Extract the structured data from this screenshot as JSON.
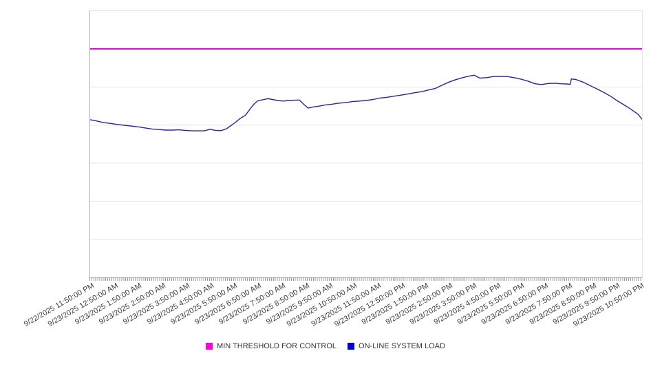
{
  "chart_data": {
    "type": "line",
    "title": "",
    "legend_position": "bottom-center",
    "plot_colors": {
      "background": "#ffffff",
      "gridline": "#e8e8e8",
      "axis": "#b0b0b0",
      "minor_tick": "#999999"
    },
    "x_axis": {
      "tick_labels": [
        "9/22/2025 11:50:00 PM",
        "9/23/2025 12:50:00 AM",
        "9/23/2025 1:50:00 AM",
        "9/23/2025 2:50:00 AM",
        "9/23/2025 3:50:00 AM",
        "9/23/2025 4:50:00 AM",
        "9/23/2025 5:50:00 AM",
        "9/23/2025 6:50:00 AM",
        "9/23/2025 7:50:00 AM",
        "9/23/2025 8:50:00 AM",
        "9/23/2025 9:50:00 AM",
        "9/23/2025 10:50:00 AM",
        "9/23/2025 11:50:00 AM",
        "9/23/2025 12:50:00 PM",
        "9/23/2025 1:50:00 PM",
        "9/23/2025 2:50:00 PM",
        "9/23/2025 3:50:00 PM",
        "9/23/2025 4:50:00 PM",
        "9/23/2025 5:50:00 PM",
        "9/23/2025 6:50:00 PM",
        "9/23/2025 7:50:00 PM",
        "9/23/2025 8:50:00 PM",
        "9/23/2025 9:50:00 PM",
        "9/23/2025 10:50:00 PM"
      ],
      "minor_ticks_per_hour": 12
    },
    "y_axis": {
      "tick_labels_visible": false,
      "gridline_divisions": 7
    },
    "series": [
      {
        "name": "MIN THRESHOLD FOR CONTROL",
        "style": "threshold",
        "line_color": "#ee00ee",
        "legend_color": "#ff00e1",
        "line_width": 2,
        "y_frac": 0.858
      },
      {
        "name": "ON-LINE SYSTEM LOAD",
        "style": "line",
        "line_color": "#2323b8",
        "legend_color": "#0000e0",
        "line_width": 1.4,
        "points_frac": [
          [
            0.0,
            0.592
          ],
          [
            0.012,
            0.587
          ],
          [
            0.025,
            0.581
          ],
          [
            0.037,
            0.578
          ],
          [
            0.05,
            0.574
          ],
          [
            0.062,
            0.571
          ],
          [
            0.075,
            0.568
          ],
          [
            0.087,
            0.565
          ],
          [
            0.1,
            0.561
          ],
          [
            0.112,
            0.557
          ],
          [
            0.125,
            0.555
          ],
          [
            0.137,
            0.553
          ],
          [
            0.15,
            0.553
          ],
          [
            0.16,
            0.554
          ],
          [
            0.172,
            0.552
          ],
          [
            0.185,
            0.55
          ],
          [
            0.197,
            0.55
          ],
          [
            0.207,
            0.55
          ],
          [
            0.217,
            0.556
          ],
          [
            0.227,
            0.552
          ],
          [
            0.237,
            0.551
          ],
          [
            0.247,
            0.558
          ],
          [
            0.256,
            0.571
          ],
          [
            0.263,
            0.582
          ],
          [
            0.272,
            0.597
          ],
          [
            0.281,
            0.608
          ],
          [
            0.289,
            0.63
          ],
          [
            0.297,
            0.651
          ],
          [
            0.304,
            0.663
          ],
          [
            0.313,
            0.667
          ],
          [
            0.322,
            0.671
          ],
          [
            0.33,
            0.668
          ],
          [
            0.34,
            0.664
          ],
          [
            0.35,
            0.662
          ],
          [
            0.36,
            0.664
          ],
          [
            0.37,
            0.665
          ],
          [
            0.379,
            0.666
          ],
          [
            0.384,
            0.656
          ],
          [
            0.389,
            0.646
          ],
          [
            0.395,
            0.636
          ],
          [
            0.405,
            0.64
          ],
          [
            0.415,
            0.643
          ],
          [
            0.425,
            0.647
          ],
          [
            0.438,
            0.65
          ],
          [
            0.45,
            0.654
          ],
          [
            0.463,
            0.656
          ],
          [
            0.475,
            0.66
          ],
          [
            0.488,
            0.662
          ],
          [
            0.5,
            0.664
          ],
          [
            0.513,
            0.668
          ],
          [
            0.525,
            0.673
          ],
          [
            0.537,
            0.676
          ],
          [
            0.55,
            0.68
          ],
          [
            0.562,
            0.684
          ],
          [
            0.575,
            0.688
          ],
          [
            0.587,
            0.693
          ],
          [
            0.6,
            0.697
          ],
          [
            0.612,
            0.703
          ],
          [
            0.625,
            0.709
          ],
          [
            0.637,
            0.721
          ],
          [
            0.65,
            0.733
          ],
          [
            0.662,
            0.742
          ],
          [
            0.675,
            0.75
          ],
          [
            0.687,
            0.756
          ],
          [
            0.696,
            0.759
          ],
          [
            0.706,
            0.748
          ],
          [
            0.718,
            0.75
          ],
          [
            0.731,
            0.754
          ],
          [
            0.743,
            0.754
          ],
          [
            0.756,
            0.754
          ],
          [
            0.768,
            0.75
          ],
          [
            0.781,
            0.744
          ],
          [
            0.793,
            0.737
          ],
          [
            0.806,
            0.727
          ],
          [
            0.818,
            0.724
          ],
          [
            0.83,
            0.728
          ],
          [
            0.843,
            0.729
          ],
          [
            0.853,
            0.727
          ],
          [
            0.863,
            0.726
          ],
          [
            0.87,
            0.725
          ],
          [
            0.872,
            0.745
          ],
          [
            0.88,
            0.743
          ],
          [
            0.893,
            0.733
          ],
          [
            0.905,
            0.721
          ],
          [
            0.918,
            0.708
          ],
          [
            0.93,
            0.695
          ],
          [
            0.943,
            0.68
          ],
          [
            0.955,
            0.663
          ],
          [
            0.968,
            0.647
          ],
          [
            0.98,
            0.631
          ],
          [
            0.993,
            0.612
          ],
          [
            1.0,
            0.593
          ]
        ]
      }
    ]
  }
}
